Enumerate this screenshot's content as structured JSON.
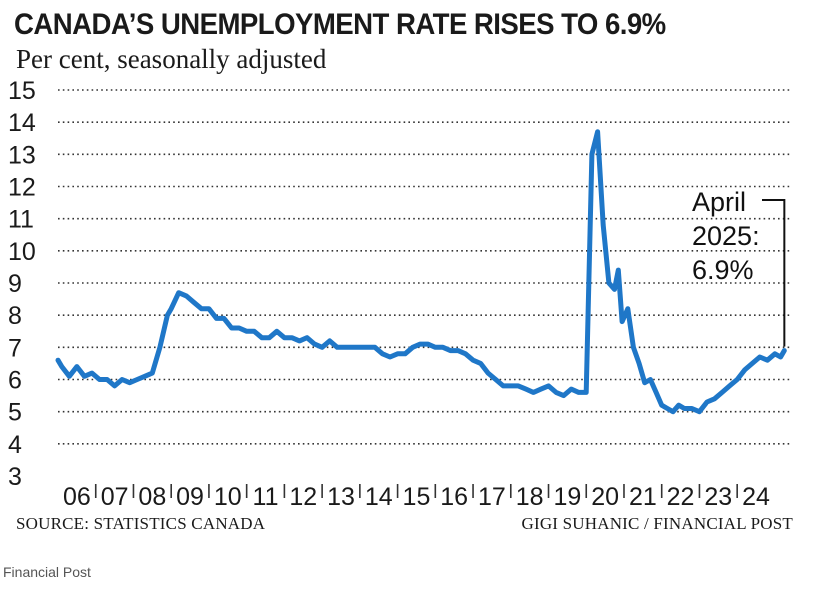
{
  "title": "CANADA’S UNEMPLOYMENT RATE RISES TO 6.9%",
  "subtitle": "Per cent, seasonally adjusted",
  "source": "SOURCE: STATISTICS CANADA",
  "credit": "GIGI SUHANIC / FINANCIAL POST",
  "caption": "Financial Post",
  "colors": {
    "line": "#1f77c8",
    "grid": "#333333",
    "text": "#1a1a1a"
  },
  "chart_data": {
    "type": "line",
    "title": "CANADA’S UNEMPLOYMENT RATE RISES TO 6.9%",
    "ylabel": "Per cent, seasonally adjusted",
    "xlabel": "",
    "ylim": [
      3,
      15
    ],
    "xlim": [
      2006.0,
      2025.4
    ],
    "y_ticks": [
      "3",
      "4",
      "5",
      "6",
      "7",
      "8",
      "9",
      "10",
      "11",
      "12",
      "13",
      "14",
      "15"
    ],
    "x_ticks": [
      "06",
      "07",
      "08",
      "09",
      "10",
      "11",
      "12",
      "13",
      "14",
      "15",
      "16",
      "17",
      "18",
      "19",
      "20",
      "21",
      "22",
      "23",
      "24"
    ],
    "annotation": {
      "lines": [
        "April",
        "2025:",
        "6.9%"
      ],
      "x": 2025.25,
      "y": 6.9
    },
    "series": [
      {
        "name": "Unemployment rate",
        "x": [
          2006.0,
          2006.1,
          2006.3,
          2006.5,
          2006.7,
          2006.9,
          2007.1,
          2007.3,
          2007.5,
          2007.7,
          2007.9,
          2008.1,
          2008.3,
          2008.5,
          2008.7,
          2008.9,
          2009.0,
          2009.2,
          2009.4,
          2009.6,
          2009.8,
          2010.0,
          2010.2,
          2010.4,
          2010.6,
          2010.8,
          2011.0,
          2011.2,
          2011.4,
          2011.6,
          2011.8,
          2012.0,
          2012.2,
          2012.4,
          2012.6,
          2012.8,
          2013.0,
          2013.2,
          2013.4,
          2013.6,
          2013.8,
          2014.0,
          2014.2,
          2014.4,
          2014.6,
          2014.8,
          2015.0,
          2015.2,
          2015.4,
          2015.6,
          2015.8,
          2016.0,
          2016.2,
          2016.4,
          2016.6,
          2016.8,
          2017.0,
          2017.2,
          2017.4,
          2017.6,
          2017.8,
          2018.0,
          2018.2,
          2018.4,
          2018.6,
          2018.8,
          2019.0,
          2019.2,
          2019.4,
          2019.6,
          2019.8,
          2020.0,
          2020.15,
          2020.3,
          2020.45,
          2020.6,
          2020.75,
          2020.85,
          2020.95,
          2021.1,
          2021.25,
          2021.4,
          2021.55,
          2021.7,
          2021.85,
          2022.0,
          2022.15,
          2022.3,
          2022.45,
          2022.6,
          2022.8,
          2023.0,
          2023.2,
          2023.4,
          2023.6,
          2023.8,
          2024.0,
          2024.2,
          2024.4,
          2024.6,
          2024.8,
          2025.0,
          2025.15,
          2025.25
        ],
        "values": [
          6.6,
          6.4,
          6.1,
          6.4,
          6.1,
          6.2,
          6.0,
          6.0,
          5.8,
          6.0,
          5.9,
          6.0,
          6.1,
          6.2,
          7.0,
          8.0,
          8.2,
          8.7,
          8.6,
          8.4,
          8.2,
          8.2,
          7.9,
          7.9,
          7.6,
          7.6,
          7.5,
          7.5,
          7.3,
          7.3,
          7.5,
          7.3,
          7.3,
          7.2,
          7.3,
          7.1,
          7.0,
          7.2,
          7.0,
          7.0,
          7.0,
          7.0,
          7.0,
          7.0,
          6.8,
          6.7,
          6.8,
          6.8,
          7.0,
          7.1,
          7.1,
          7.0,
          7.0,
          6.9,
          6.9,
          6.8,
          6.6,
          6.5,
          6.2,
          6.0,
          5.8,
          5.8,
          5.8,
          5.7,
          5.6,
          5.7,
          5.8,
          5.6,
          5.5,
          5.7,
          5.6,
          5.6,
          13.0,
          13.7,
          10.8,
          9.0,
          8.8,
          9.4,
          7.8,
          8.2,
          7.0,
          6.5,
          5.9,
          6.0,
          5.6,
          5.2,
          5.1,
          5.0,
          5.2,
          5.1,
          5.1,
          5.0,
          5.3,
          5.4,
          5.6,
          5.8,
          6.0,
          6.3,
          6.5,
          6.7,
          6.6,
          6.8,
          6.7,
          6.9
        ]
      }
    ]
  }
}
